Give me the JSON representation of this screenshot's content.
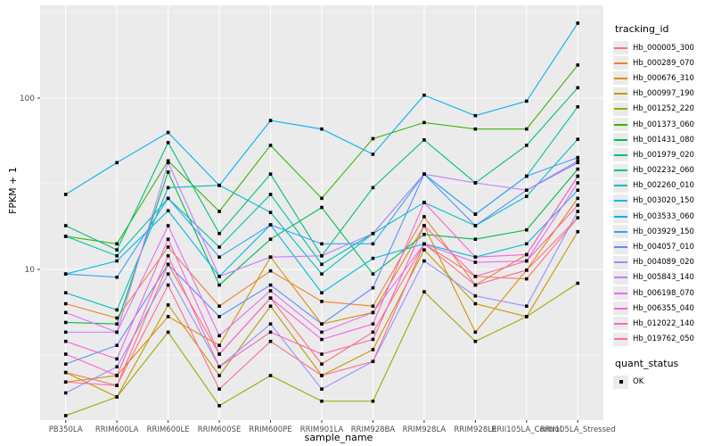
{
  "chart_data": {
    "type": "line",
    "title": "",
    "xlabel": "sample_name",
    "ylabel": "FPKM + 1",
    "x_categories": [
      "PB350LA",
      "RRIM600LA",
      "RRIM600LE",
      "RRIM600SE",
      "RRIM600PE",
      "RRIM901LA",
      "RRIM928BA",
      "RRIM928LA",
      "RRIM928LE",
      "RRII105LA_Control",
      "RRII105LA_Stressed"
    ],
    "y_scale": "log10",
    "y_ticks": [
      100,
      10
    ],
    "ylim": [
      1.3,
      330
    ],
    "grid": true,
    "legend_position": "right",
    "legend_title": "tracking_id",
    "panel_bg": "#ebebeb",
    "grid_color": "#ffffff",
    "point_shape": "filled-square",
    "point_color": "#000000",
    "point_legend": {
      "title": "quant_status",
      "items": [
        {
          "label": "OK",
          "shape": "filled-square"
        }
      ]
    },
    "series": [
      {
        "name": "Hb_000005_300",
        "color": "#F8766D",
        "values": [
          2.5,
          2.1,
          10.7,
          3.2,
          6.8,
          2.8,
          4.3,
          14.1,
          9.1,
          8.8,
          20.0
        ]
      },
      {
        "name": "Hb_000289_070",
        "color": "#EA8331",
        "values": [
          6.3,
          5.2,
          13.5,
          6.1,
          9.8,
          6.5,
          6.1,
          20.3,
          8.1,
          12.2,
          35.0
        ]
      },
      {
        "name": "Hb_000676_310",
        "color": "#D89000",
        "values": [
          2.2,
          2.4,
          5.3,
          3.6,
          11.8,
          4.8,
          5.6,
          18.0,
          4.3,
          9.9,
          26.0
        ]
      },
      {
        "name": "Hb_000997_190",
        "color": "#C09B00",
        "values": [
          2.5,
          1.8,
          6.2,
          2.4,
          6.1,
          2.4,
          3.4,
          13.0,
          6.3,
          5.3,
          16.6
        ]
      },
      {
        "name": "Hb_001252_220",
        "color": "#A3A500",
        "values": [
          1.4,
          1.8,
          4.3,
          1.6,
          2.4,
          1.7,
          1.7,
          7.4,
          3.8,
          5.3,
          8.3
        ]
      },
      {
        "name": "Hb_001373_060",
        "color": "#39B600",
        "values": [
          15.6,
          14.1,
          43.0,
          21.8,
          53.0,
          26.0,
          58.0,
          72.0,
          66.0,
          66.0,
          156.0
        ]
      },
      {
        "name": "Hb_001431_080",
        "color": "#00BB4E",
        "values": [
          4.9,
          4.8,
          37.0,
          8.1,
          15.0,
          23.0,
          9.4,
          16.0,
          15.0,
          17.0,
          38.5
        ]
      },
      {
        "name": "Hb_001979_020",
        "color": "#00BF7D",
        "values": [
          18.0,
          13.0,
          55.0,
          16.2,
          36.0,
          12.0,
          30.0,
          57.0,
          32.0,
          53.0,
          115.0
        ]
      },
      {
        "name": "Hb_002232_060",
        "color": "#00C1A3",
        "values": [
          15.6,
          12.0,
          26.0,
          13.5,
          27.4,
          10.7,
          16.2,
          36.0,
          21.0,
          35.0,
          89.0
        ]
      },
      {
        "name": "Hb_002260_010",
        "color": "#00BFC4",
        "values": [
          7.3,
          5.8,
          30.0,
          31.0,
          21.5,
          9.4,
          16.2,
          24.6,
          18.0,
          26.7,
          57.5
        ]
      },
      {
        "name": "Hb_003020_150",
        "color": "#00BAE0",
        "values": [
          9.4,
          11.2,
          22.0,
          9.1,
          18.2,
          7.3,
          11.6,
          14.1,
          11.8,
          14.1,
          29.0
        ]
      },
      {
        "name": "Hb_003533_060",
        "color": "#00B0F6",
        "values": [
          27.4,
          42.0,
          63.0,
          30.9,
          74.0,
          66.0,
          47.0,
          104.0,
          79.0,
          96.0,
          274.0
        ]
      },
      {
        "name": "Hb_003929_150",
        "color": "#35A2FF",
        "values": [
          9.4,
          9.0,
          26.0,
          11.8,
          18.2,
          14.1,
          14.1,
          36.0,
          21.0,
          35.0,
          45.0
        ]
      },
      {
        "name": "Hb_004057_010",
        "color": "#5E8BFF",
        "values": [
          2.8,
          3.6,
          10.7,
          5.3,
          8.1,
          4.8,
          7.8,
          36.0,
          18.0,
          29.0,
          42.0
        ]
      },
      {
        "name": "Hb_004089_020",
        "color": "#9590FF",
        "values": [
          1.9,
          2.7,
          9.4,
          2.7,
          4.8,
          2.0,
          2.9,
          11.2,
          7.0,
          6.1,
          21.8
        ]
      },
      {
        "name": "Hb_005843_140",
        "color": "#C77CFF",
        "values": [
          4.3,
          4.3,
          42.0,
          9.1,
          11.8,
          12.0,
          16.2,
          36.0,
          32.0,
          29.0,
          43.0
        ]
      },
      {
        "name": "Hb_006198_070",
        "color": "#E76BF3",
        "values": [
          5.6,
          4.3,
          18.0,
          4.1,
          7.5,
          4.3,
          5.6,
          14.1,
          11.0,
          11.2,
          32.0
        ]
      },
      {
        "name": "Hb_006355_040",
        "color": "#FA62DB",
        "values": [
          3.8,
          3.0,
          15.0,
          3.2,
          6.8,
          3.9,
          4.8,
          24.6,
          11.8,
          12.2,
          35.0
        ]
      },
      {
        "name": "Hb_012022_140",
        "color": "#FF62BC",
        "values": [
          3.2,
          2.4,
          12.0,
          2.7,
          4.3,
          3.2,
          3.9,
          18.0,
          9.1,
          11.2,
          23.7
        ]
      },
      {
        "name": "Hb_019762_050",
        "color": "#FF6A98",
        "values": [
          2.2,
          2.1,
          8.1,
          2.0,
          3.8,
          2.4,
          2.9,
          14.1,
          8.1,
          9.9,
          20.0
        ]
      }
    ]
  }
}
